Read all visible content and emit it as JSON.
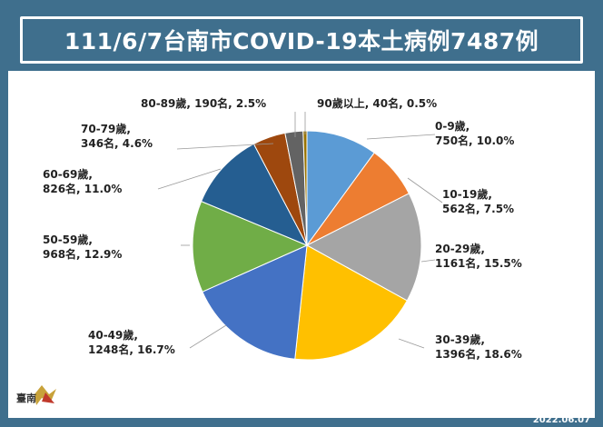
{
  "title": "111/6/7台南市COVID-19本土病例7487例",
  "date": "2022.06.07",
  "logo_text": "臺南",
  "chart_data": {
    "type": "pie",
    "title": "111/6/7台南市COVID-19本土病例7487例",
    "categories": [
      "0-9歲",
      "10-19歲",
      "20-29歲",
      "30-39歲",
      "40-49歲",
      "50-59歲",
      "60-69歲",
      "70-79歲",
      "80-89歲",
      "90歲以上"
    ],
    "counts": [
      750,
      562,
      1161,
      1396,
      1248,
      968,
      826,
      346,
      190,
      40
    ],
    "percentages": [
      10.0,
      7.5,
      15.5,
      18.6,
      16.7,
      12.9,
      11.0,
      4.6,
      2.5,
      0.5
    ],
    "labels": [
      [
        "0-9歲,",
        "750名, 10.0%"
      ],
      [
        "10-19歲,",
        "562名, 7.5%"
      ],
      [
        "20-29歲,",
        "1161名, 15.5%"
      ],
      [
        "30-39歲,",
        "1396名, 18.6%"
      ],
      [
        "40-49歲,",
        "1248名, 16.7%"
      ],
      [
        "50-59歲,",
        "968名, 12.9%"
      ],
      [
        "60-69歲,",
        "826名, 11.0%"
      ],
      [
        "70-79歲,",
        "346名, 4.6%"
      ],
      [
        "80-89歲, 190名, 2.5%"
      ],
      [
        "90歲以上, 40名, 0.5%"
      ]
    ],
    "colors": [
      "#5b9bd5",
      "#ed7d31",
      "#a5a5a5",
      "#ffc000",
      "#4472c4",
      "#70ad47",
      "#255e91",
      "#9e480e",
      "#636363",
      "#997300"
    ]
  }
}
